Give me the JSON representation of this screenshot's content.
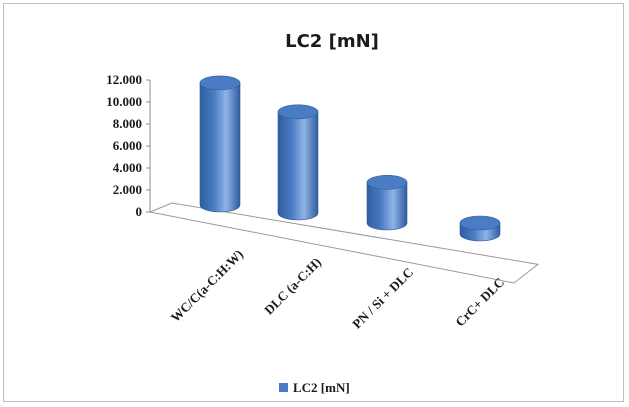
{
  "chart_data": {
    "type": "bar",
    "style": "3d-cylinder",
    "title": "LC2 [mN]",
    "categories": [
      "WC/C(a-C:H:W)",
      "DLC (a-C:H)",
      "PN / Si + DLC",
      "CrC+ DLC"
    ],
    "series": [
      {
        "name": "LC2 [mN]",
        "values": [
          11100,
          9200,
          3700,
          1000
        ]
      }
    ],
    "ylim": [
      0,
      12000
    ],
    "yticks": [
      "0",
      "2.000",
      "4.000",
      "6.000",
      "8.000",
      "10.000",
      "12.000"
    ],
    "ytick_values": [
      0,
      2000,
      4000,
      6000,
      8000,
      10000,
      12000
    ],
    "xlabel": "",
    "ylabel": "",
    "grid": false,
    "legend_position": "bottom",
    "colors": {
      "bar": "#4a7cc4",
      "bar_dark": "#2f5d9e",
      "bar_light": "#8fb3e6"
    }
  }
}
